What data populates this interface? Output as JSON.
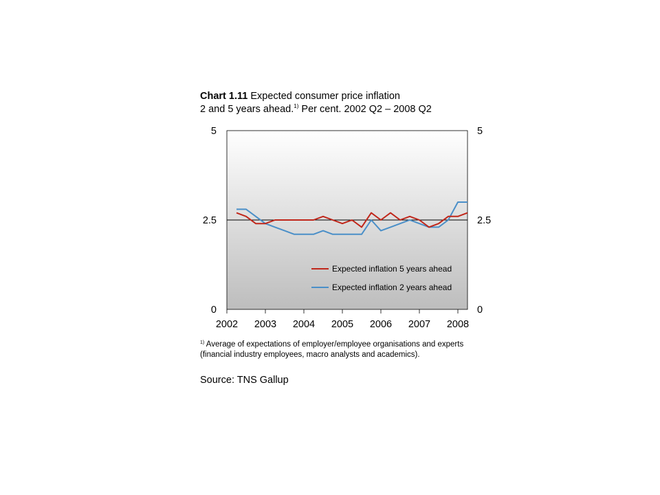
{
  "title": {
    "chart_number": "Chart 1.11",
    "line1_rest": "Expected consumer price inflation",
    "line2_pre": "2 and 5 years ahead.",
    "line2_sup": "1)",
    "line2_post": "Per cent. 2002 Q2 – 2008 Q2"
  },
  "footnote": {
    "marker": "1)",
    "text": "Average of expectations of employer/employee organisations and experts (financial industry employees, macro analysts and academics)."
  },
  "source": "Source: TNS Gallup",
  "colors": {
    "five_year": "#c0261a",
    "two_year": "#4a8fc8",
    "reference_line": "#000000",
    "plot_top": "#ffffff",
    "plot_bottom": "#bdbdbd"
  },
  "chart_data": {
    "type": "line",
    "title": "Expected consumer price inflation 2 and 5 years ahead. Per cent. 2002 Q2 – 2008 Q2",
    "x_range": [
      2002.0,
      2008.25
    ],
    "x_tick_labels": [
      "2002",
      "2003",
      "2004",
      "2005",
      "2006",
      "2007",
      "2008"
    ],
    "x_ticks": [
      2002,
      2003,
      2004,
      2005,
      2006,
      2007,
      2008
    ],
    "ylim": [
      0,
      5
    ],
    "y_ticks_left": [
      "0",
      "2.5",
      "5"
    ],
    "y_ticks_right": [
      "0",
      "2.5",
      "5"
    ],
    "y_tick_values": [
      0,
      2.5,
      5
    ],
    "reference_line": 2.5,
    "legend_position": "bottom-right",
    "x": [
      2002.25,
      2002.5,
      2002.75,
      2003.0,
      2003.25,
      2003.5,
      2003.75,
      2004.0,
      2004.25,
      2004.5,
      2004.75,
      2005.0,
      2005.25,
      2005.5,
      2005.75,
      2006.0,
      2006.25,
      2006.5,
      2006.75,
      2007.0,
      2007.25,
      2007.5,
      2007.75,
      2008.0,
      2008.25
    ],
    "series": [
      {
        "name": "Expected inflation 5 years ahead",
        "values": [
          2.7,
          2.6,
          2.4,
          2.4,
          2.5,
          2.5,
          2.5,
          2.5,
          2.5,
          2.6,
          2.5,
          2.4,
          2.5,
          2.3,
          2.7,
          2.5,
          2.7,
          2.5,
          2.6,
          2.5,
          2.3,
          2.4,
          2.6,
          2.6,
          2.7
        ]
      },
      {
        "name": "Expected inflation 2 years ahead",
        "values": [
          2.8,
          2.8,
          2.6,
          2.4,
          2.3,
          2.2,
          2.1,
          2.1,
          2.1,
          2.2,
          2.1,
          2.1,
          2.1,
          2.1,
          2.5,
          2.2,
          2.3,
          2.4,
          2.5,
          2.4,
          2.3,
          2.3,
          2.5,
          3.0,
          3.0
        ]
      }
    ]
  }
}
